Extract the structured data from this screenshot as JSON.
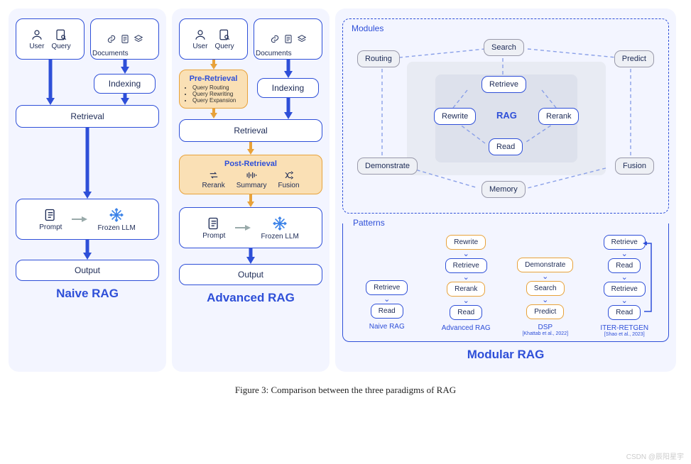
{
  "colors": {
    "blue": "#2e4fd8",
    "orange": "#e8a23a",
    "panel_bg": "#f3f5ff",
    "gray_border": "#99a0b0",
    "gray_fill": "#eef0f5",
    "text": "#1c2a55"
  },
  "naive": {
    "title": "Naive RAG",
    "user": "User",
    "query": "Query",
    "documents": "Documents",
    "indexing": "Indexing",
    "retrieval": "Retrieval",
    "prompt": "Prompt",
    "llm": "Frozen LLM",
    "output": "Output"
  },
  "adv": {
    "title": "Advanced RAG",
    "user": "User",
    "query": "Query",
    "documents": "Documents",
    "pre_title": "Pre-Retrieval",
    "pre_items": [
      "Query Routing",
      "Query Rewriting",
      "Query Expansion"
    ],
    "indexing": "Indexing",
    "retrieval": "Retrieval",
    "post_title": "Post-Retrieval",
    "rerank": "Rerank",
    "summary": "Summary",
    "fusion": "Fusion",
    "prompt": "Prompt",
    "llm": "Frozen LLM",
    "output": "Output"
  },
  "mod": {
    "title": "Modular RAG",
    "modules_label": "Modules",
    "nodes": {
      "routing": "Routing",
      "search": "Search",
      "predict": "Predict",
      "retrieve": "Retrieve",
      "rewrite": "Rewrite",
      "rerank": "Rerank",
      "read": "Read",
      "demonstrate": "Demonstrate",
      "memory": "Memory",
      "fusion": "Fusion",
      "rag": "RAG"
    },
    "patterns_label": "Patterns",
    "patterns": [
      {
        "name": "Naive RAG",
        "sub": "",
        "steps": [
          {
            "t": "Retrieve",
            "c": "b"
          },
          {
            "t": "Read",
            "c": "b"
          }
        ]
      },
      {
        "name": "Advanced RAG",
        "sub": "",
        "steps": [
          {
            "t": "Rewrite",
            "c": "o"
          },
          {
            "t": "Retrieve",
            "c": "b"
          },
          {
            "t": "Rerank",
            "c": "o"
          },
          {
            "t": "Read",
            "c": "b"
          }
        ]
      },
      {
        "name": "DSP",
        "sub": "[Khattab et al., 2022]",
        "steps": [
          {
            "t": "Demonstrate",
            "c": "o"
          },
          {
            "t": "Search",
            "c": "o"
          },
          {
            "t": "Predict",
            "c": "o"
          }
        ]
      },
      {
        "name": "ITER-RETGEN",
        "sub": "[Shao et al., 2023]",
        "steps": [
          {
            "t": "Retrieve",
            "c": "b"
          },
          {
            "t": "Read",
            "c": "b"
          },
          {
            "t": "Retrieve",
            "c": "b"
          },
          {
            "t": "Read",
            "c": "b"
          }
        ],
        "loop": true
      }
    ]
  },
  "caption": "Figure 3: Comparison between the three paradigms of RAG",
  "watermark": "CSDN @辰阳星宇"
}
